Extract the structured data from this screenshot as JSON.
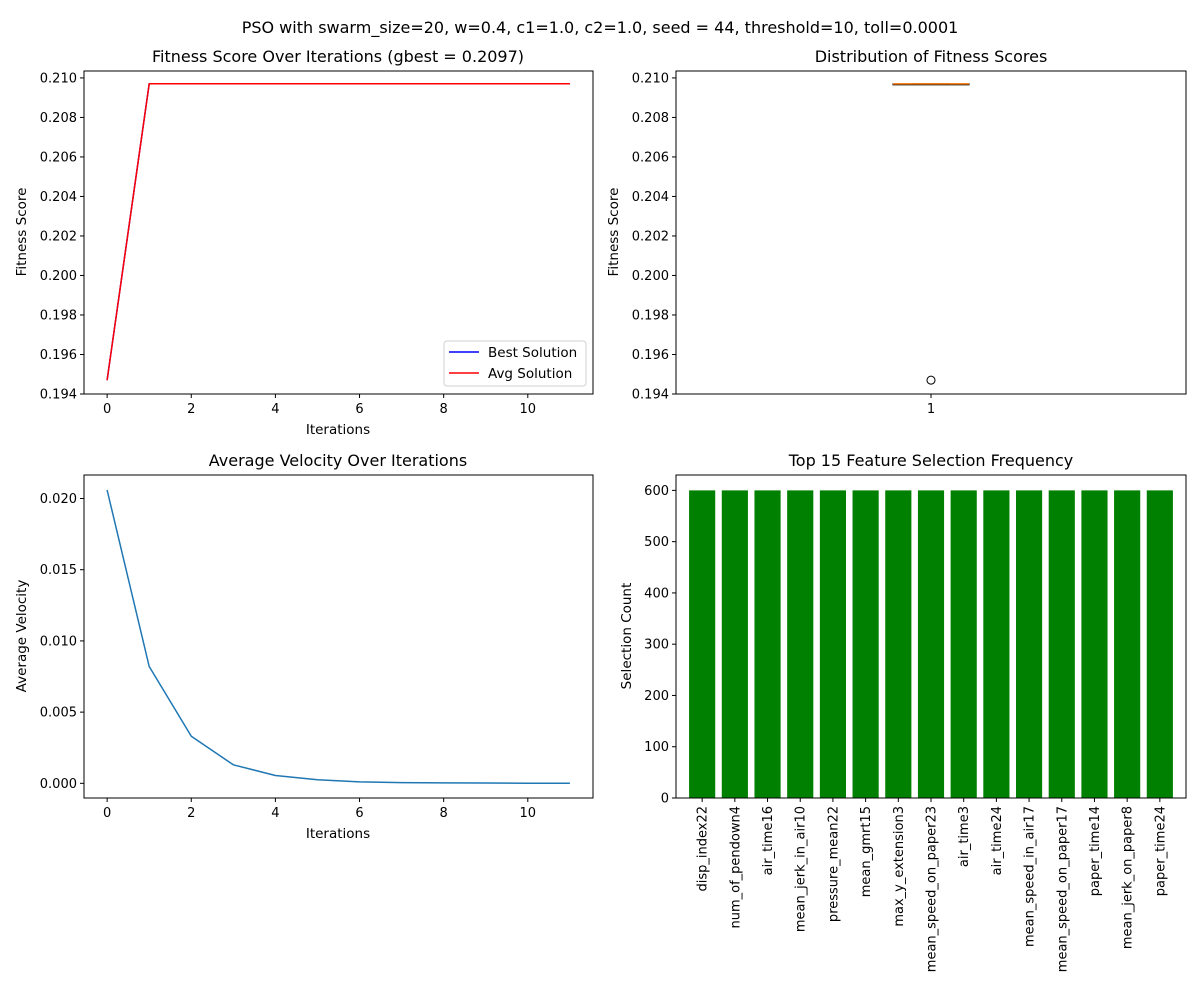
{
  "figure_title": "PSO with swarm_size=20, w=0.4, c1=1.0, c2=1.0, seed = 44, threshold=10, toll=0.0001",
  "chart_data": [
    {
      "type": "line",
      "title": "Fitness Score Over Iterations (gbest = 0.2097)",
      "xlabel": "Iterations",
      "ylabel": "Fitness Score",
      "xlim": [
        -0.55,
        11.55
      ],
      "ylim": [
        0.194,
        0.21035
      ],
      "x_ticks": [
        "0",
        "2",
        "4",
        "6",
        "8",
        "10"
      ],
      "y_ticks": [
        "0.194",
        "0.196",
        "0.198",
        "0.200",
        "0.202",
        "0.204",
        "0.206",
        "0.208",
        "0.210"
      ],
      "x": [
        0,
        1,
        2,
        3,
        4,
        5,
        6,
        7,
        8,
        9,
        10,
        11
      ],
      "series": [
        {
          "name": "Best Solution",
          "color": "#0000ff",
          "values": [
            0.1947,
            0.2097,
            0.2097,
            0.2097,
            0.2097,
            0.2097,
            0.2097,
            0.2097,
            0.2097,
            0.2097,
            0.2097,
            0.2097
          ]
        },
        {
          "name": "Avg Solution",
          "color": "#ff0000",
          "values": [
            0.1947,
            0.2097,
            0.2097,
            0.2097,
            0.2097,
            0.2097,
            0.2097,
            0.2097,
            0.2097,
            0.2097,
            0.2097,
            0.2097
          ]
        }
      ],
      "legend": "lower-right",
      "grid": false
    },
    {
      "type": "box",
      "title": "Distribution of Fitness Scores",
      "ylabel": "Fitness Score",
      "xlim": [
        0.5,
        1.5
      ],
      "ylim": [
        0.194,
        0.21035
      ],
      "x_ticks": [
        "1"
      ],
      "y_ticks": [
        "0.194",
        "0.196",
        "0.198",
        "0.200",
        "0.202",
        "0.204",
        "0.206",
        "0.208",
        "0.210"
      ],
      "position": 1,
      "q1": 0.2097,
      "median": 0.2097,
      "q3": 0.2097,
      "whisker_low": 0.2097,
      "whisker_high": 0.2097,
      "outliers": [
        0.1947
      ],
      "median_color": "#ff7f0e",
      "grid": false
    },
    {
      "type": "line",
      "title": "Average Velocity Over Iterations",
      "xlabel": "Iterations",
      "ylabel": "Average Velocity",
      "xlim": [
        -0.55,
        11.55
      ],
      "ylim": [
        -0.00103,
        0.02165
      ],
      "x_ticks": [
        "0",
        "2",
        "4",
        "6",
        "8",
        "10"
      ],
      "y_ticks": [
        "0.000",
        "0.005",
        "0.010",
        "0.015",
        "0.020"
      ],
      "x": [
        0,
        1,
        2,
        3,
        4,
        5,
        6,
        7,
        8,
        9,
        10,
        11
      ],
      "series": [
        {
          "color": "#1f77b4",
          "values": [
            0.0206,
            0.0082,
            0.0033,
            0.0013,
            0.00055,
            0.00025,
            0.0001,
            5e-05,
            3e-05,
            2e-05,
            1e-05,
            1e-05
          ]
        }
      ],
      "grid": false
    },
    {
      "type": "bar",
      "title": "Top 15 Feature Selection Frequency",
      "ylabel": "Selection Count",
      "ylim": [
        0,
        630
      ],
      "y_ticks": [
        "0",
        "100",
        "200",
        "300",
        "400",
        "500",
        "600"
      ],
      "categories": [
        "disp_index22",
        "num_of_pendown4",
        "air_time16",
        "mean_jerk_in_air10",
        "pressure_mean22",
        "mean_gmrt15",
        "max_y_extension3",
        "mean_speed_on_paper23",
        "air_time3",
        "air_time24",
        "mean_speed_in_air17",
        "mean_speed_on_paper17",
        "paper_time14",
        "mean_jerk_on_paper8",
        "paper_time24"
      ],
      "values": [
        600,
        600,
        600,
        600,
        600,
        600,
        600,
        600,
        600,
        600,
        600,
        600,
        600,
        600,
        600
      ],
      "bar_color": "#008000",
      "grid": false
    }
  ]
}
